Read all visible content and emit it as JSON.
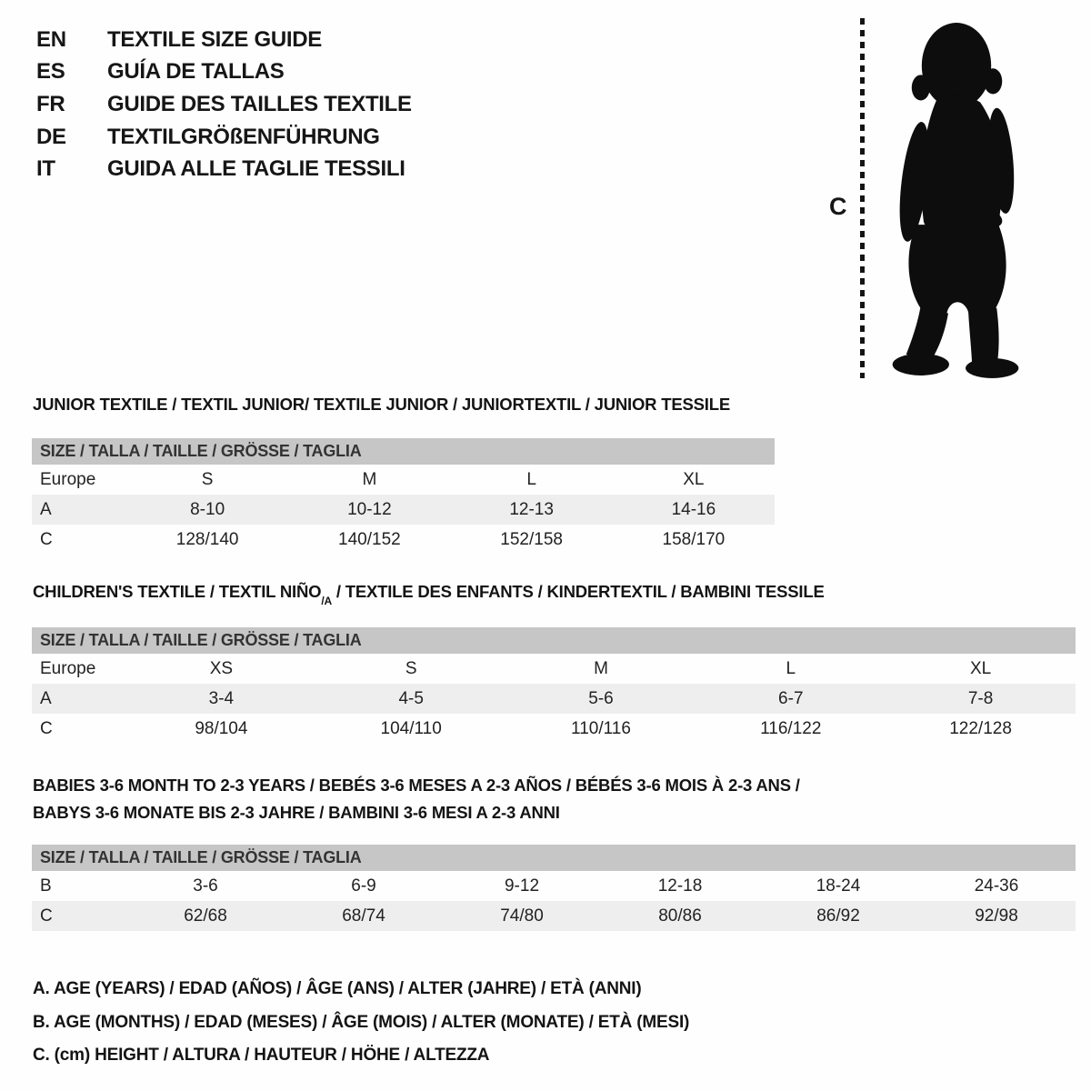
{
  "page": {
    "background": "#fefefe",
    "text_color": "#161616",
    "header_band_color": "#c6c6c6",
    "shaded_row_color": "#eeeeee"
  },
  "header": {
    "languages": [
      {
        "code": "EN",
        "label": "TEXTILE SIZE GUIDE"
      },
      {
        "code": "ES",
        "label": "GUÍA DE TALLAS"
      },
      {
        "code": "FR",
        "label": "GUIDE DES TAILLES TEXTILE"
      },
      {
        "code": "DE",
        "label": "TEXTILGRÖßENFÜHRUNG"
      },
      {
        "code": "IT",
        "label": "GUIDA ALLE TAGLIE TESSILI"
      }
    ],
    "figure": {
      "measure_label": "C",
      "figure_name": "toddler-silhouette"
    }
  },
  "sections": [
    {
      "title": "JUNIOR TEXTILE / TEXTIL JUNIOR/ TEXTILE JUNIOR / JUNIORTEXTIL / JUNIOR TESSILE",
      "size_header": "SIZE / TALLA / TAILLE / GRÖSSE / TAGLIA",
      "rows": [
        {
          "label": "Europe",
          "values": [
            "S",
            "M",
            "L",
            "XL"
          ]
        },
        {
          "label": "A",
          "values": [
            "8-10",
            "10-12",
            "12-13",
            "14-16"
          ]
        },
        {
          "label": "C",
          "values": [
            "128/140",
            "140/152",
            "152/158",
            "158/170"
          ]
        }
      ]
    },
    {
      "title_prefix": "CHILDREN'S TEXTILE / TEXTIL NIÑO",
      "title_sub": "/A",
      "title_suffix": " / TEXTILE DES ENFANTS / KINDERTEXTIL / BAMBINI TESSILE",
      "size_header": "SIZE / TALLA / TAILLE / GRÖSSE / TAGLIA",
      "rows": [
        {
          "label": "Europe",
          "values": [
            "XS",
            "S",
            "M",
            "L",
            "XL"
          ]
        },
        {
          "label": "A",
          "values": [
            "3-4",
            "4-5",
            "5-6",
            "6-7",
            "7-8"
          ]
        },
        {
          "label": "C",
          "values": [
            "98/104",
            "104/110",
            "110/116",
            "116/122",
            "122/128"
          ]
        }
      ]
    },
    {
      "title_line1": "BABIES 3-6 MONTH TO 2-3 YEARS / BEBÉS 3-6 MESES A 2-3 AÑOS / BÉBÉS 3-6 MOIS À 2-3 ANS /",
      "title_line2": "BABYS 3-6 MONATE BIS 2-3 JAHRE / BAMBINI 3-6 MESI A 2-3 ANNI",
      "size_header": "SIZE / TALLA / TAILLE / GRÖSSE / TAGLIA",
      "rows": [
        {
          "label": "B",
          "values": [
            "3-6",
            "6-9",
            "9-12",
            "12-18",
            "18-24",
            "24-36"
          ]
        },
        {
          "label": "C",
          "values": [
            "62/68",
            "68/74",
            "74/80",
            "80/86",
            "86/92",
            "92/98"
          ]
        }
      ]
    }
  ],
  "footnotes": [
    "A. AGE (YEARS) / EDAD (AÑOS) / ÂGE (ANS) / ALTER (JAHRE) / ETÀ (ANNI)",
    "B. AGE (MONTHS) / EDAD (MESES) / ÂGE (MOIS) / ALTER (MONATE) / ETÀ (MESI)",
    "C. (cm) HEIGHT / ALTURA / HAUTEUR / HÖHE / ALTEZZA"
  ]
}
